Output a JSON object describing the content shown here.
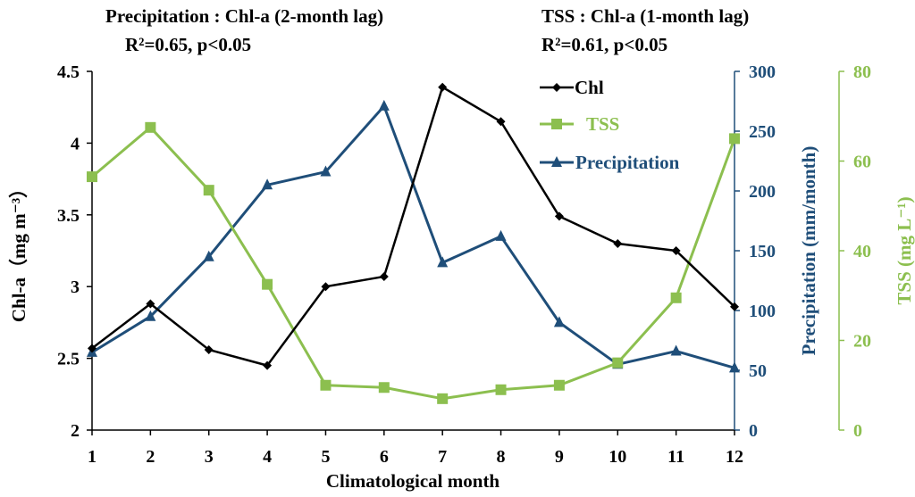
{
  "chart_data": {
    "type": "line",
    "xlabel": "Climatological month",
    "categories": [
      "1",
      "2",
      "3",
      "4",
      "5",
      "6",
      "7",
      "8",
      "9",
      "10",
      "11",
      "12"
    ],
    "annotations": {
      "left_title": "Precipitation : Chl-a (2-month lag)",
      "left_stat": "R²=0.65, p<0.05",
      "right_title": "TSS : Chl-a (1-month lag)",
      "right_stat": "R²=0.61, p<0.05"
    },
    "axes": {
      "chl": {
        "label": "Chl-a（mg m⁻³）",
        "range": [
          2,
          4.5
        ],
        "ticks": [
          "2",
          "2.5",
          "3",
          "3.5",
          "4",
          "4.5"
        ],
        "color": "#000000"
      },
      "precip": {
        "label": "Precipitation (mm/month)",
        "range": [
          0,
          300
        ],
        "ticks": [
          "0",
          "50",
          "100",
          "150",
          "200",
          "250",
          "300"
        ],
        "color": "#1f4e79"
      },
      "tss": {
        "label": "TSS (mg L⁻¹)",
        "range": [
          0,
          80
        ],
        "ticks": [
          "0",
          "20",
          "40",
          "60",
          "80"
        ],
        "color": "#8cbf4f"
      }
    },
    "series": [
      {
        "name": "Chl",
        "axis": "chl",
        "marker": "diamond",
        "color": "#000000",
        "values": [
          2.57,
          2.88,
          2.56,
          2.45,
          3.0,
          3.07,
          4.39,
          4.15,
          3.49,
          3.3,
          3.25,
          2.86
        ]
      },
      {
        "name": "TSS",
        "axis": "tss",
        "marker": "square",
        "color": "#8cbf4f",
        "values": [
          56.5,
          67.5,
          53.5,
          32.5,
          10.0,
          9.5,
          7.0,
          9.0,
          10.0,
          15.0,
          29.5,
          65.0
        ]
      },
      {
        "name": "Precipitation",
        "axis": "precip",
        "marker": "triangle",
        "color": "#1f4e79",
        "values": [
          65,
          95,
          145,
          205,
          216,
          271,
          140,
          162,
          90,
          55,
          66,
          52
        ]
      }
    ],
    "legend_position": "top-right-inside"
  }
}
